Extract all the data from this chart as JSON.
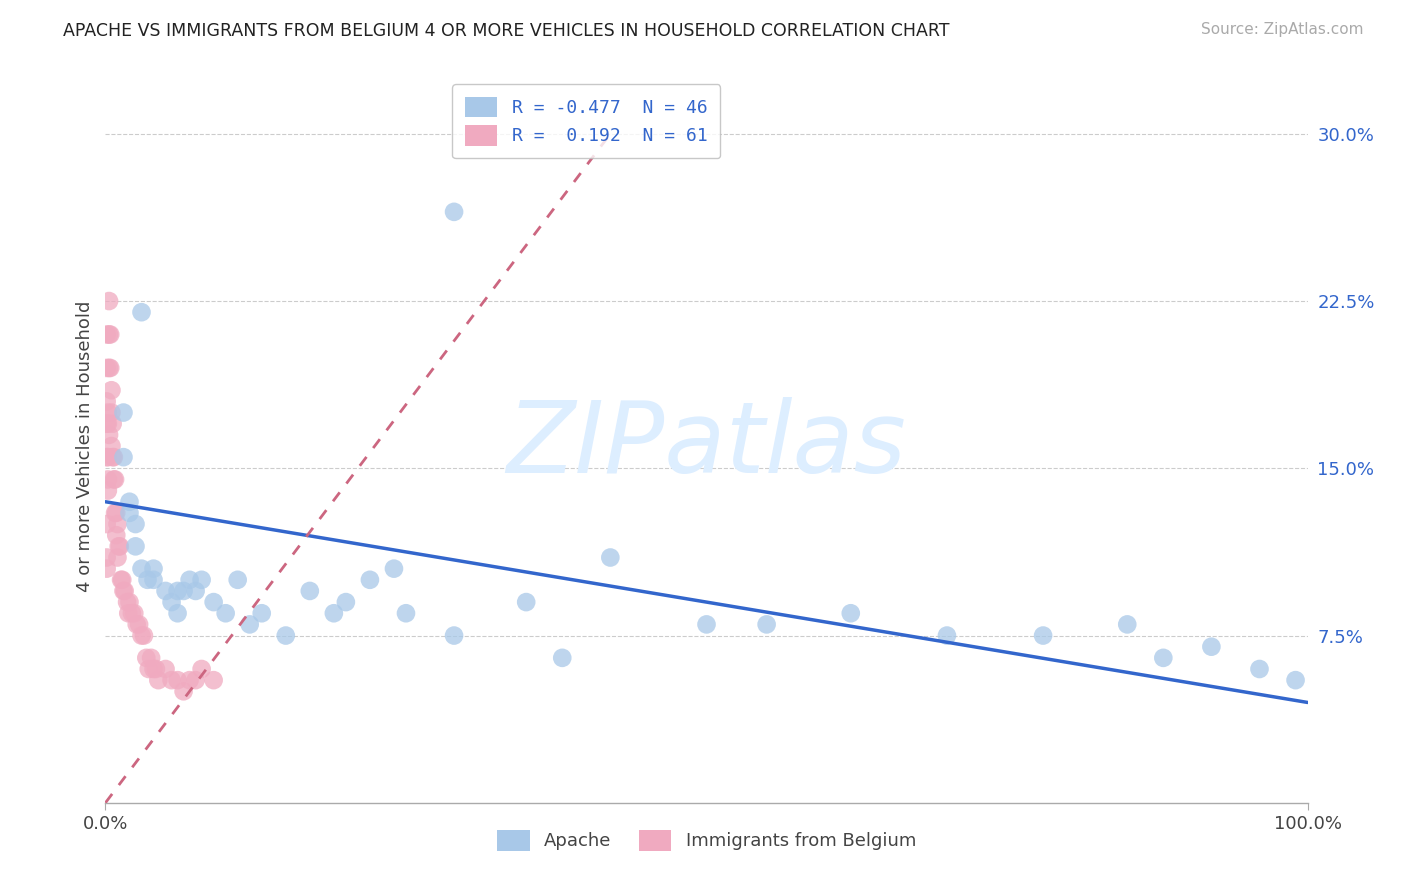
{
  "title": "APACHE VS IMMIGRANTS FROM BELGIUM 4 OR MORE VEHICLES IN HOUSEHOLD CORRELATION CHART",
  "source": "Source: ZipAtlas.com",
  "ylabel": "4 or more Vehicles in Household",
  "xlim_min": 0.0,
  "xlim_max": 1.0,
  "ylim_min": 0.0,
  "ylim_max": 0.32,
  "ytick_vals": [
    0.075,
    0.15,
    0.225,
    0.3
  ],
  "ytick_labels": [
    "7.5%",
    "15.0%",
    "22.5%",
    "30.0%"
  ],
  "xtick_vals": [
    0.0,
    1.0
  ],
  "xtick_labels": [
    "0.0%",
    "100.0%"
  ],
  "color_apache": "#a8c8e8",
  "color_belgium": "#f0aac0",
  "line_apache_color": "#3366cc",
  "line_belgium_color": "#cc6680",
  "watermark_text": "ZIPatlas",
  "watermark_color": "#ddeeff",
  "background_color": "#ffffff",
  "legend_r1_label": "R = -0.477  N = 46",
  "legend_r2_label": "R =  0.192  N = 61",
  "legend_color": "#3366cc",
  "bottom_legend1": "Apache",
  "bottom_legend2": "Immigrants from Belgium",
  "apache_x": [
    0.29,
    0.03,
    0.015,
    0.015,
    0.02,
    0.02,
    0.025,
    0.025,
    0.03,
    0.035,
    0.04,
    0.04,
    0.05,
    0.055,
    0.06,
    0.06,
    0.065,
    0.07,
    0.075,
    0.08,
    0.09,
    0.1,
    0.11,
    0.12,
    0.13,
    0.15,
    0.17,
    0.19,
    0.2,
    0.22,
    0.24,
    0.25,
    0.29,
    0.35,
    0.38,
    0.42,
    0.5,
    0.55,
    0.62,
    0.7,
    0.78,
    0.85,
    0.88,
    0.92,
    0.96,
    0.99
  ],
  "apache_y": [
    0.265,
    0.22,
    0.175,
    0.155,
    0.135,
    0.13,
    0.125,
    0.115,
    0.105,
    0.1,
    0.105,
    0.1,
    0.095,
    0.09,
    0.085,
    0.095,
    0.095,
    0.1,
    0.095,
    0.1,
    0.09,
    0.085,
    0.1,
    0.08,
    0.085,
    0.075,
    0.095,
    0.085,
    0.09,
    0.1,
    0.105,
    0.085,
    0.075,
    0.09,
    0.065,
    0.11,
    0.08,
    0.08,
    0.085,
    0.075,
    0.075,
    0.08,
    0.065,
    0.07,
    0.06,
    0.055
  ],
  "belgium_x": [
    0.005,
    0.005,
    0.005,
    0.006,
    0.006,
    0.007,
    0.007,
    0.008,
    0.008,
    0.009,
    0.009,
    0.01,
    0.01,
    0.011,
    0.012,
    0.013,
    0.014,
    0.015,
    0.016,
    0.018,
    0.019,
    0.02,
    0.022,
    0.024,
    0.026,
    0.028,
    0.03,
    0.032,
    0.034,
    0.036,
    0.038,
    0.04,
    0.042,
    0.044,
    0.05,
    0.055,
    0.06,
    0.065,
    0.07,
    0.075,
    0.08,
    0.09,
    0.004,
    0.004,
    0.003,
    0.003,
    0.003,
    0.003,
    0.002,
    0.002,
    0.002,
    0.002,
    0.002,
    0.001,
    0.001,
    0.001,
    0.001,
    0.001,
    0.001,
    0.001,
    0.001
  ],
  "belgium_y": [
    0.185,
    0.175,
    0.16,
    0.17,
    0.155,
    0.155,
    0.145,
    0.145,
    0.13,
    0.13,
    0.12,
    0.125,
    0.11,
    0.115,
    0.115,
    0.1,
    0.1,
    0.095,
    0.095,
    0.09,
    0.085,
    0.09,
    0.085,
    0.085,
    0.08,
    0.08,
    0.075,
    0.075,
    0.065,
    0.06,
    0.065,
    0.06,
    0.06,
    0.055,
    0.06,
    0.055,
    0.055,
    0.05,
    0.055,
    0.055,
    0.06,
    0.055,
    0.195,
    0.21,
    0.225,
    0.21,
    0.195,
    0.165,
    0.175,
    0.17,
    0.155,
    0.14,
    0.145,
    0.21,
    0.195,
    0.18,
    0.17,
    0.155,
    0.125,
    0.11,
    0.105
  ],
  "belgium_line_x0": 0.0,
  "belgium_line_y0": 0.0,
  "belgium_line_x1": 0.42,
  "belgium_line_y1": 0.3,
  "apache_line_x0": 0.0,
  "apache_line_y0": 0.135,
  "apache_line_x1": 1.0,
  "apache_line_y1": 0.045
}
